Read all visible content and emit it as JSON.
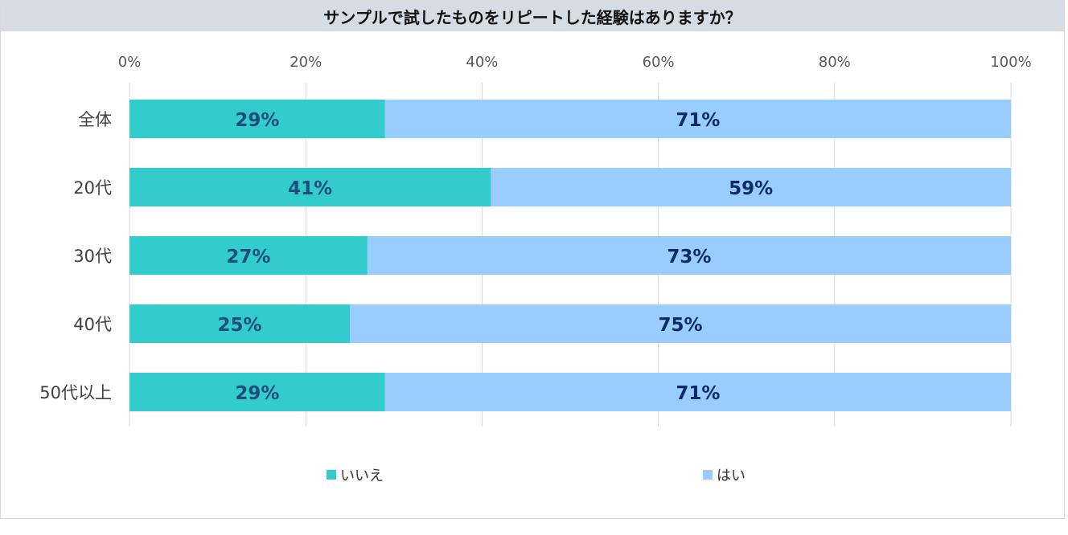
{
  "chart_data": {
    "type": "bar",
    "orientation": "horizontal",
    "stacked": true,
    "title": "サンプルで試したものをリピートした経験はありますか？",
    "categories": [
      "全体",
      "20代",
      "30代",
      "40代",
      "50代以上"
    ],
    "series": [
      {
        "name": "いいえ",
        "values": [
          29,
          41,
          27,
          25,
          29
        ],
        "color": "#33cccc",
        "label_color": "#1f4e79"
      },
      {
        "name": "はい",
        "values": [
          71,
          59,
          73,
          75,
          71
        ],
        "color": "#99ccff",
        "label_color": "#0d2a6b"
      }
    ],
    "xlim": [
      0,
      100
    ],
    "xticks": [
      0,
      20,
      40,
      60,
      80,
      100
    ],
    "xtick_labels": [
      "0%",
      "20%",
      "40%",
      "60%",
      "80%",
      "100%"
    ],
    "grid": true,
    "legend_position": "bottom"
  }
}
